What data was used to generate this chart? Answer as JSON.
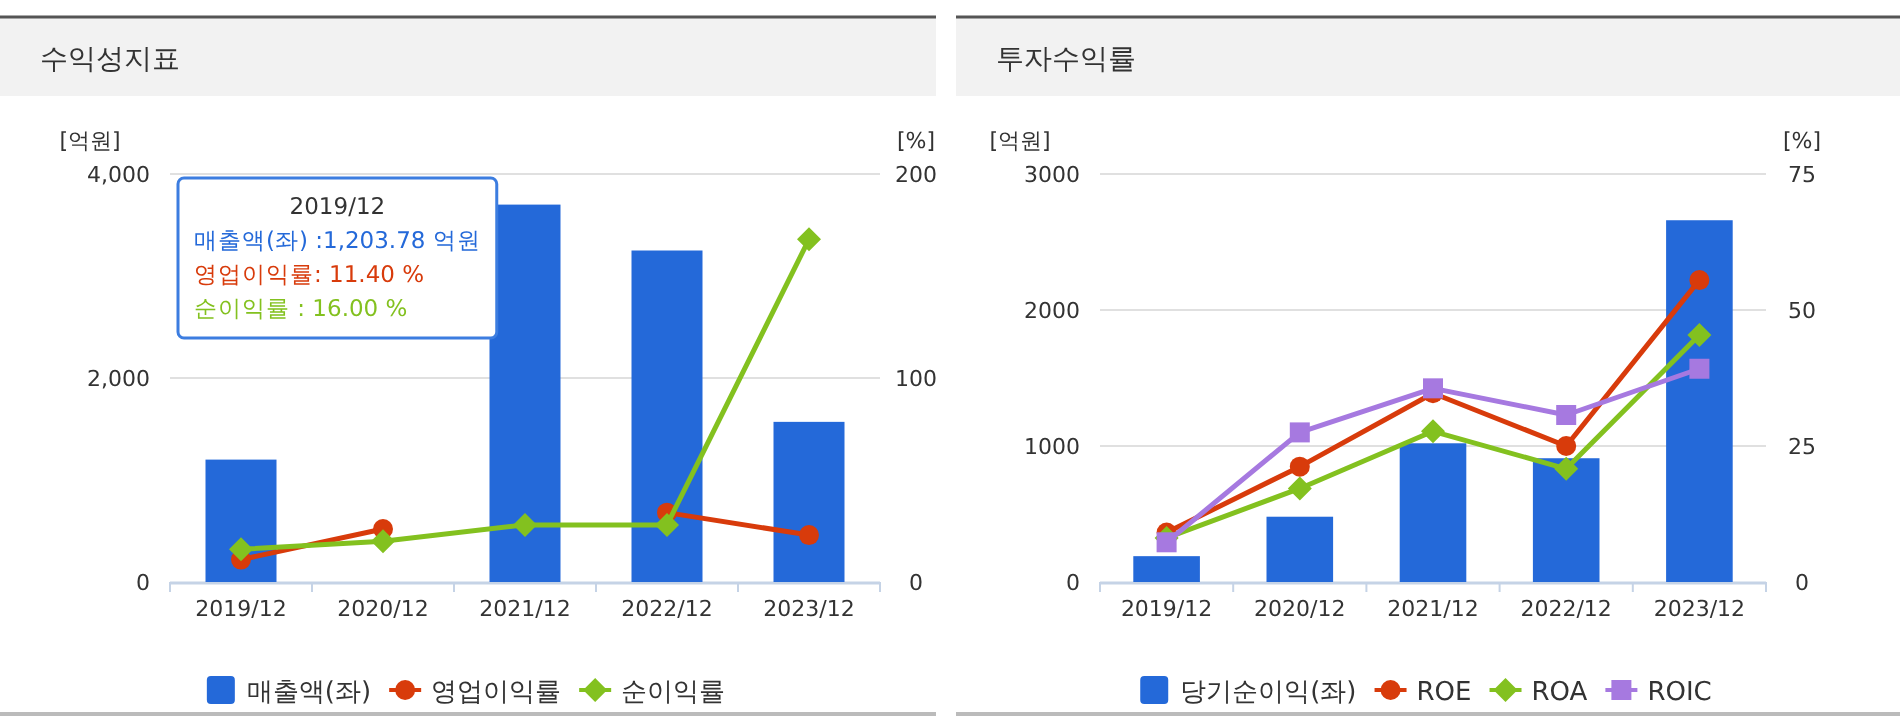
{
  "chart_data": [
    {
      "type": "bar",
      "title": "수익성지표",
      "ylabel": "[억원]",
      "y2label": "[%]",
      "categories": [
        "2019/12",
        "2020/12",
        "2021/12",
        "2022/12",
        "2023/12"
      ],
      "series": [
        {
          "name": "매출액(좌)",
          "color": "#2469d9",
          "values": [
            1200,
            null,
            3700,
            3250,
            1570
          ]
        },
        {
          "name": "영업이익률",
          "type": "line",
          "axis": "y2",
          "marker": "circle",
          "color": "#d83b0b",
          "values": [
            11,
            26,
            null,
            34,
            23
          ]
        },
        {
          "name": "순이익률",
          "type": "line",
          "axis": "y2",
          "marker": "diamond",
          "color": "#83c11f",
          "values": [
            16,
            20,
            28,
            28,
            168
          ]
        }
      ],
      "ylim": [
        0,
        4000
      ],
      "yticks": [
        0,
        {
          "value": 2000,
          "label": "2,000"
        },
        {
          "value": 4000,
          "label": "4,000"
        }
      ],
      "y2lim": [
        0,
        200
      ],
      "y2ticks": [
        0,
        100,
        200
      ],
      "grid": "y",
      "legend": "bottom",
      "annotations": [
        "2019/12",
        "매출액(좌) :1,203.78 억원",
        "영업이익률: 11.40 %",
        "순이익률 : 16.00 %"
      ]
    },
    {
      "type": "bar",
      "title": "투자수익률",
      "ylabel": "[억원]",
      "y2label": "[%]",
      "categories": [
        "2019/12",
        "2020/12",
        "2021/12",
        "2022/12",
        "2023/12"
      ],
      "series": [
        {
          "name": "당기순이익(좌)",
          "color": "#2469d9",
          "values": [
            190,
            480,
            1020,
            910,
            2660
          ]
        },
        {
          "name": "ROE",
          "type": "line",
          "axis": "y2",
          "marker": "circle",
          "color": "#d83b0b",
          "values": [
            9.1,
            21.2,
            34.7,
            25.0,
            55.5
          ]
        },
        {
          "name": "ROA",
          "type": "line",
          "axis": "y2",
          "marker": "diamond",
          "color": "#83c11f",
          "values": [
            8.1,
            17.2,
            27.7,
            20.8,
            45.4
          ]
        },
        {
          "name": "ROIC",
          "type": "line",
          "axis": "y2",
          "marker": "square",
          "color": "#a679e0",
          "values": [
            7.3,
            27.5,
            35.6,
            30.7,
            39.2
          ]
        }
      ],
      "ylim": [
        0,
        3000
      ],
      "yticks": [
        0,
        1000,
        2000,
        3000
      ],
      "y2lim": [
        0,
        75
      ],
      "y2ticks": [
        0,
        25,
        50,
        75
      ],
      "grid": "y",
      "legend": "bottom"
    }
  ]
}
